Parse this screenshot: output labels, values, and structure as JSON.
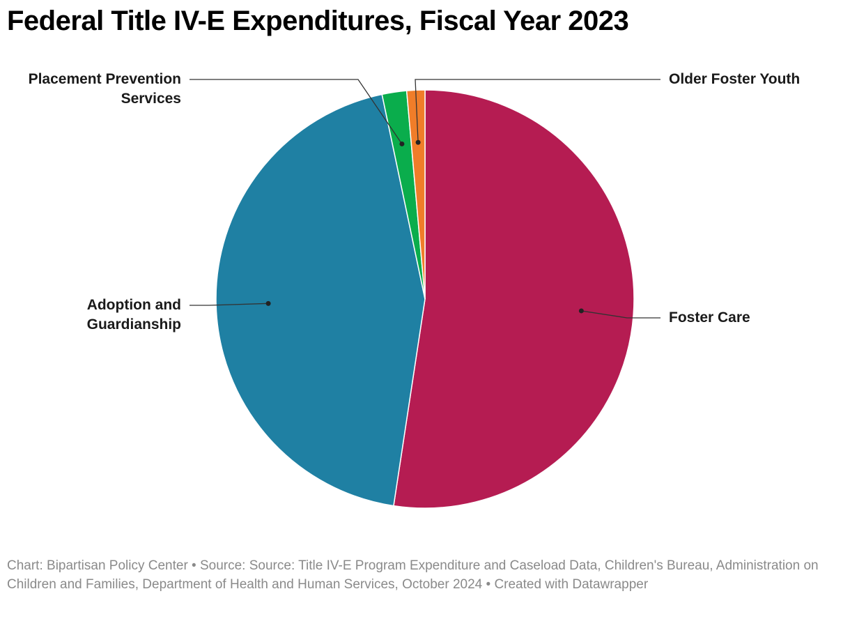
{
  "title": "Federal Title IV-E Expenditures, Fiscal Year 2023",
  "chart_data": {
    "type": "pie",
    "title": "Federal Title IV-E Expenditures, Fiscal Year 2023",
    "slices": [
      {
        "name": "Foster Care",
        "label_lines": [
          "Foster Care"
        ],
        "value": 52.4,
        "color": "#b51c52"
      },
      {
        "name": "Adoption and Guardianship",
        "label_lines": [
          "Adoption and",
          "Guardianship"
        ],
        "value": 44.3,
        "color": "#1f80a3"
      },
      {
        "name": "Placement Prevention Services",
        "label_lines": [
          "Placement Prevention",
          "Services"
        ],
        "value": 1.9,
        "color": "#0aad4c"
      },
      {
        "name": "Older Foster Youth",
        "label_lines": [
          "Older Foster Youth"
        ],
        "value": 1.4,
        "color": "#f07d29"
      }
    ],
    "unit": "percent (estimated)"
  },
  "footer": {
    "text": "Chart: Bipartisan Policy Center • Source: Source: Title IV-E Program Expenditure and Caseload Data, Children's Bureau, Administration on Children and Families, Department of Health and Human Services, October 2024 • Created with Datawrapper"
  }
}
